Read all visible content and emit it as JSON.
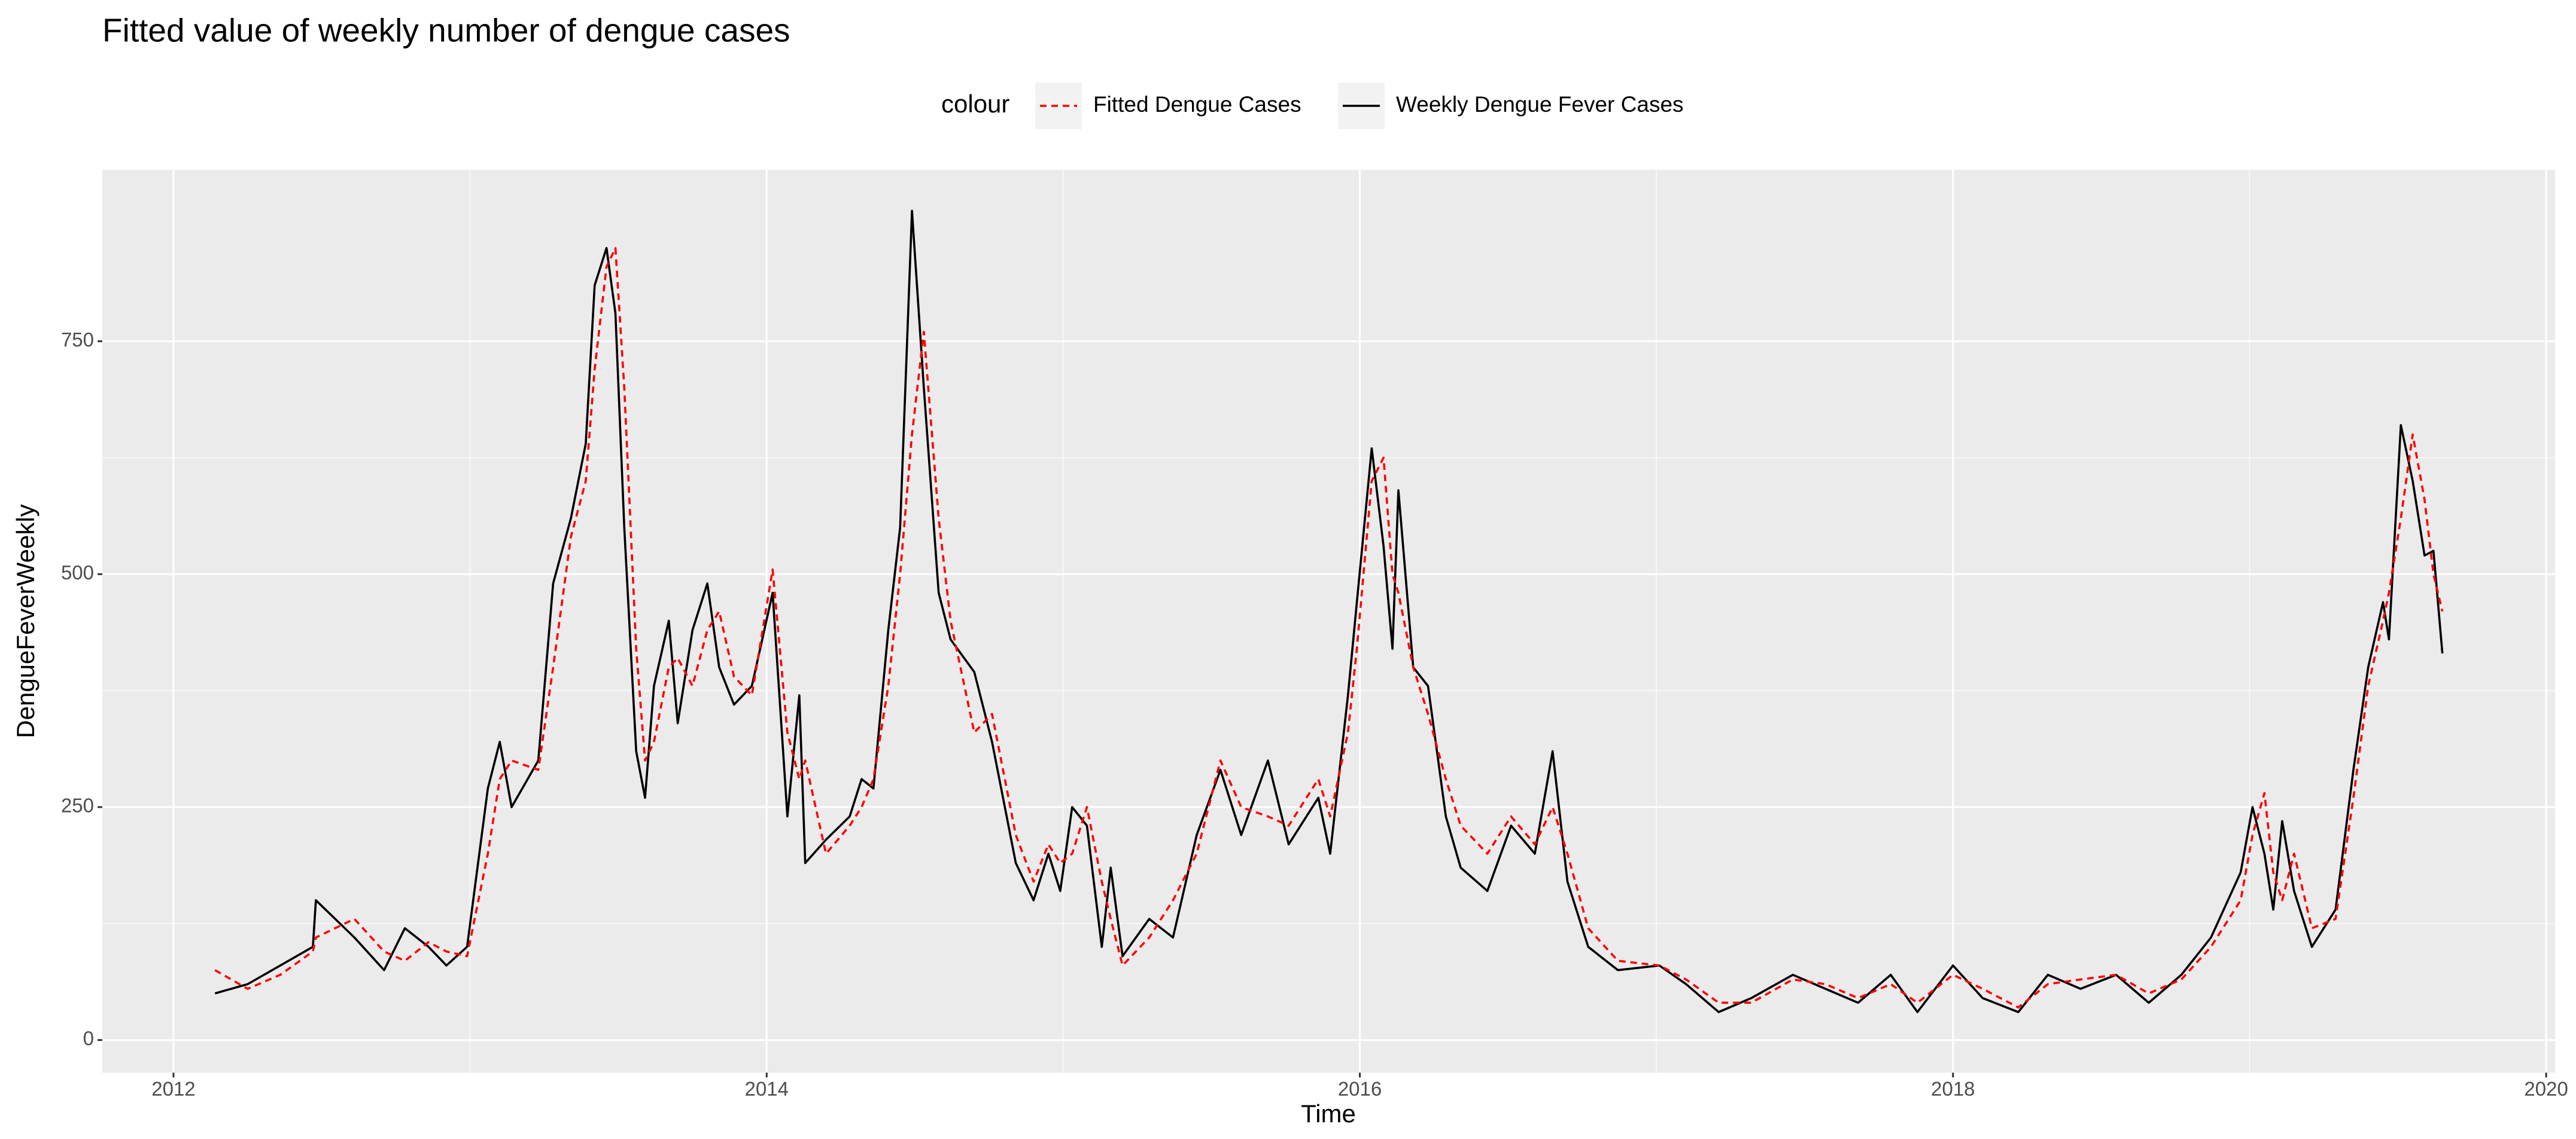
{
  "chart_data": {
    "type": "line",
    "title": "Fitted value of weekly number of dengue cases",
    "x_label": "Time",
    "y_label": "DengueFeverWeekly",
    "legend_title": "colour",
    "legend_position": "top",
    "grid": true,
    "xlim": [
      2011.76,
      2020.03
    ],
    "ylim": [
      -35,
      934
    ],
    "xticks": [
      2012,
      2014,
      2016,
      2018,
      2020
    ],
    "yticks": [
      0,
      250,
      500,
      750
    ],
    "x": [
      2012.14,
      2012.25,
      2012.36,
      2012.47,
      2012.48,
      2012.61,
      2012.71,
      2012.78,
      2012.86,
      2012.92,
      2012.99,
      2013.06,
      2013.1,
      2013.14,
      2013.23,
      2013.28,
      2013.34,
      2013.39,
      2013.42,
      2013.46,
      2013.49,
      2013.52,
      2013.56,
      2013.59,
      2013.62,
      2013.67,
      2013.7,
      2013.75,
      2013.8,
      2013.84,
      2013.89,
      2013.95,
      2014.02,
      2014.07,
      2014.11,
      2014.13,
      2014.2,
      2014.28,
      2014.32,
      2014.36,
      2014.41,
      2014.45,
      2014.49,
      2014.53,
      2014.58,
      2014.62,
      2014.7,
      2014.76,
      2014.84,
      2014.9,
      2014.95,
      2014.99,
      2015.03,
      2015.08,
      2015.13,
      2015.16,
      2015.2,
      2015.29,
      2015.37,
      2015.45,
      2015.53,
      2015.6,
      2015.69,
      2015.76,
      2015.86,
      2015.9,
      2015.96,
      2015.99,
      2016.04,
      2016.08,
      2016.11,
      2016.13,
      2016.18,
      2016.23,
      2016.29,
      2016.34,
      2016.43,
      2016.51,
      2016.59,
      2016.65,
      2016.7,
      2016.77,
      2016.87,
      2017.01,
      2017.1,
      2017.21,
      2017.32,
      2017.46,
      2017.57,
      2017.68,
      2017.79,
      2017.88,
      2018.0,
      2018.1,
      2018.22,
      2018.32,
      2018.43,
      2018.55,
      2018.66,
      2018.77,
      2018.87,
      2018.97,
      2019.01,
      2019.05,
      2019.08,
      2019.11,
      2019.15,
      2019.21,
      2019.29,
      2019.35,
      2019.4,
      2019.45,
      2019.47,
      2019.51,
      2019.55,
      2019.59,
      2019.62,
      2019.65
    ],
    "series": [
      {
        "name": "Fitted Dengue Cases",
        "color": "#ff0000",
        "dashed": true,
        "values": [
          75,
          55,
          70,
          95,
          110,
          130,
          95,
          85,
          105,
          95,
          90,
          200,
          280,
          300,
          290,
          400,
          540,
          600,
          720,
          830,
          850,
          700,
          420,
          300,
          320,
          400,
          410,
          380,
          440,
          460,
          390,
          370,
          505,
          330,
          280,
          300,
          200,
          230,
          250,
          280,
          380,
          500,
          650,
          760,
          560,
          450,
          330,
          350,
          220,
          170,
          210,
          190,
          200,
          250,
          170,
          130,
          80,
          110,
          150,
          200,
          300,
          250,
          240,
          230,
          280,
          240,
          330,
          420,
          600,
          625,
          500,
          480,
          400,
          350,
          280,
          230,
          200,
          240,
          210,
          250,
          200,
          120,
          85,
          80,
          65,
          40,
          40,
          65,
          60,
          45,
          60,
          40,
          70,
          55,
          35,
          60,
          65,
          70,
          50,
          65,
          100,
          150,
          220,
          265,
          180,
          150,
          200,
          120,
          130,
          260,
          380,
          450,
          480,
          560,
          650,
          580,
          500,
          460
        ]
      },
      {
        "name": "Weekly Dengue Fever Cases",
        "color": "#000000",
        "dashed": false,
        "values": [
          50,
          60,
          80,
          100,
          150,
          110,
          75,
          120,
          100,
          80,
          100,
          270,
          320,
          250,
          300,
          490,
          560,
          640,
          810,
          850,
          780,
          550,
          310,
          260,
          380,
          450,
          340,
          440,
          490,
          400,
          360,
          380,
          480,
          240,
          370,
          190,
          215,
          240,
          280,
          270,
          440,
          550,
          890,
          700,
          480,
          430,
          395,
          320,
          190,
          150,
          200,
          160,
          250,
          230,
          100,
          185,
          90,
          130,
          110,
          220,
          290,
          220,
          300,
          210,
          260,
          200,
          370,
          470,
          635,
          530,
          420,
          590,
          400,
          380,
          240,
          185,
          160,
          230,
          200,
          310,
          170,
          100,
          75,
          80,
          60,
          30,
          45,
          70,
          55,
          40,
          70,
          30,
          80,
          45,
          30,
          70,
          55,
          70,
          40,
          70,
          110,
          180,
          250,
          200,
          140,
          235,
          160,
          100,
          140,
          290,
          400,
          470,
          430,
          660,
          600,
          520,
          525,
          415
        ]
      }
    ]
  }
}
